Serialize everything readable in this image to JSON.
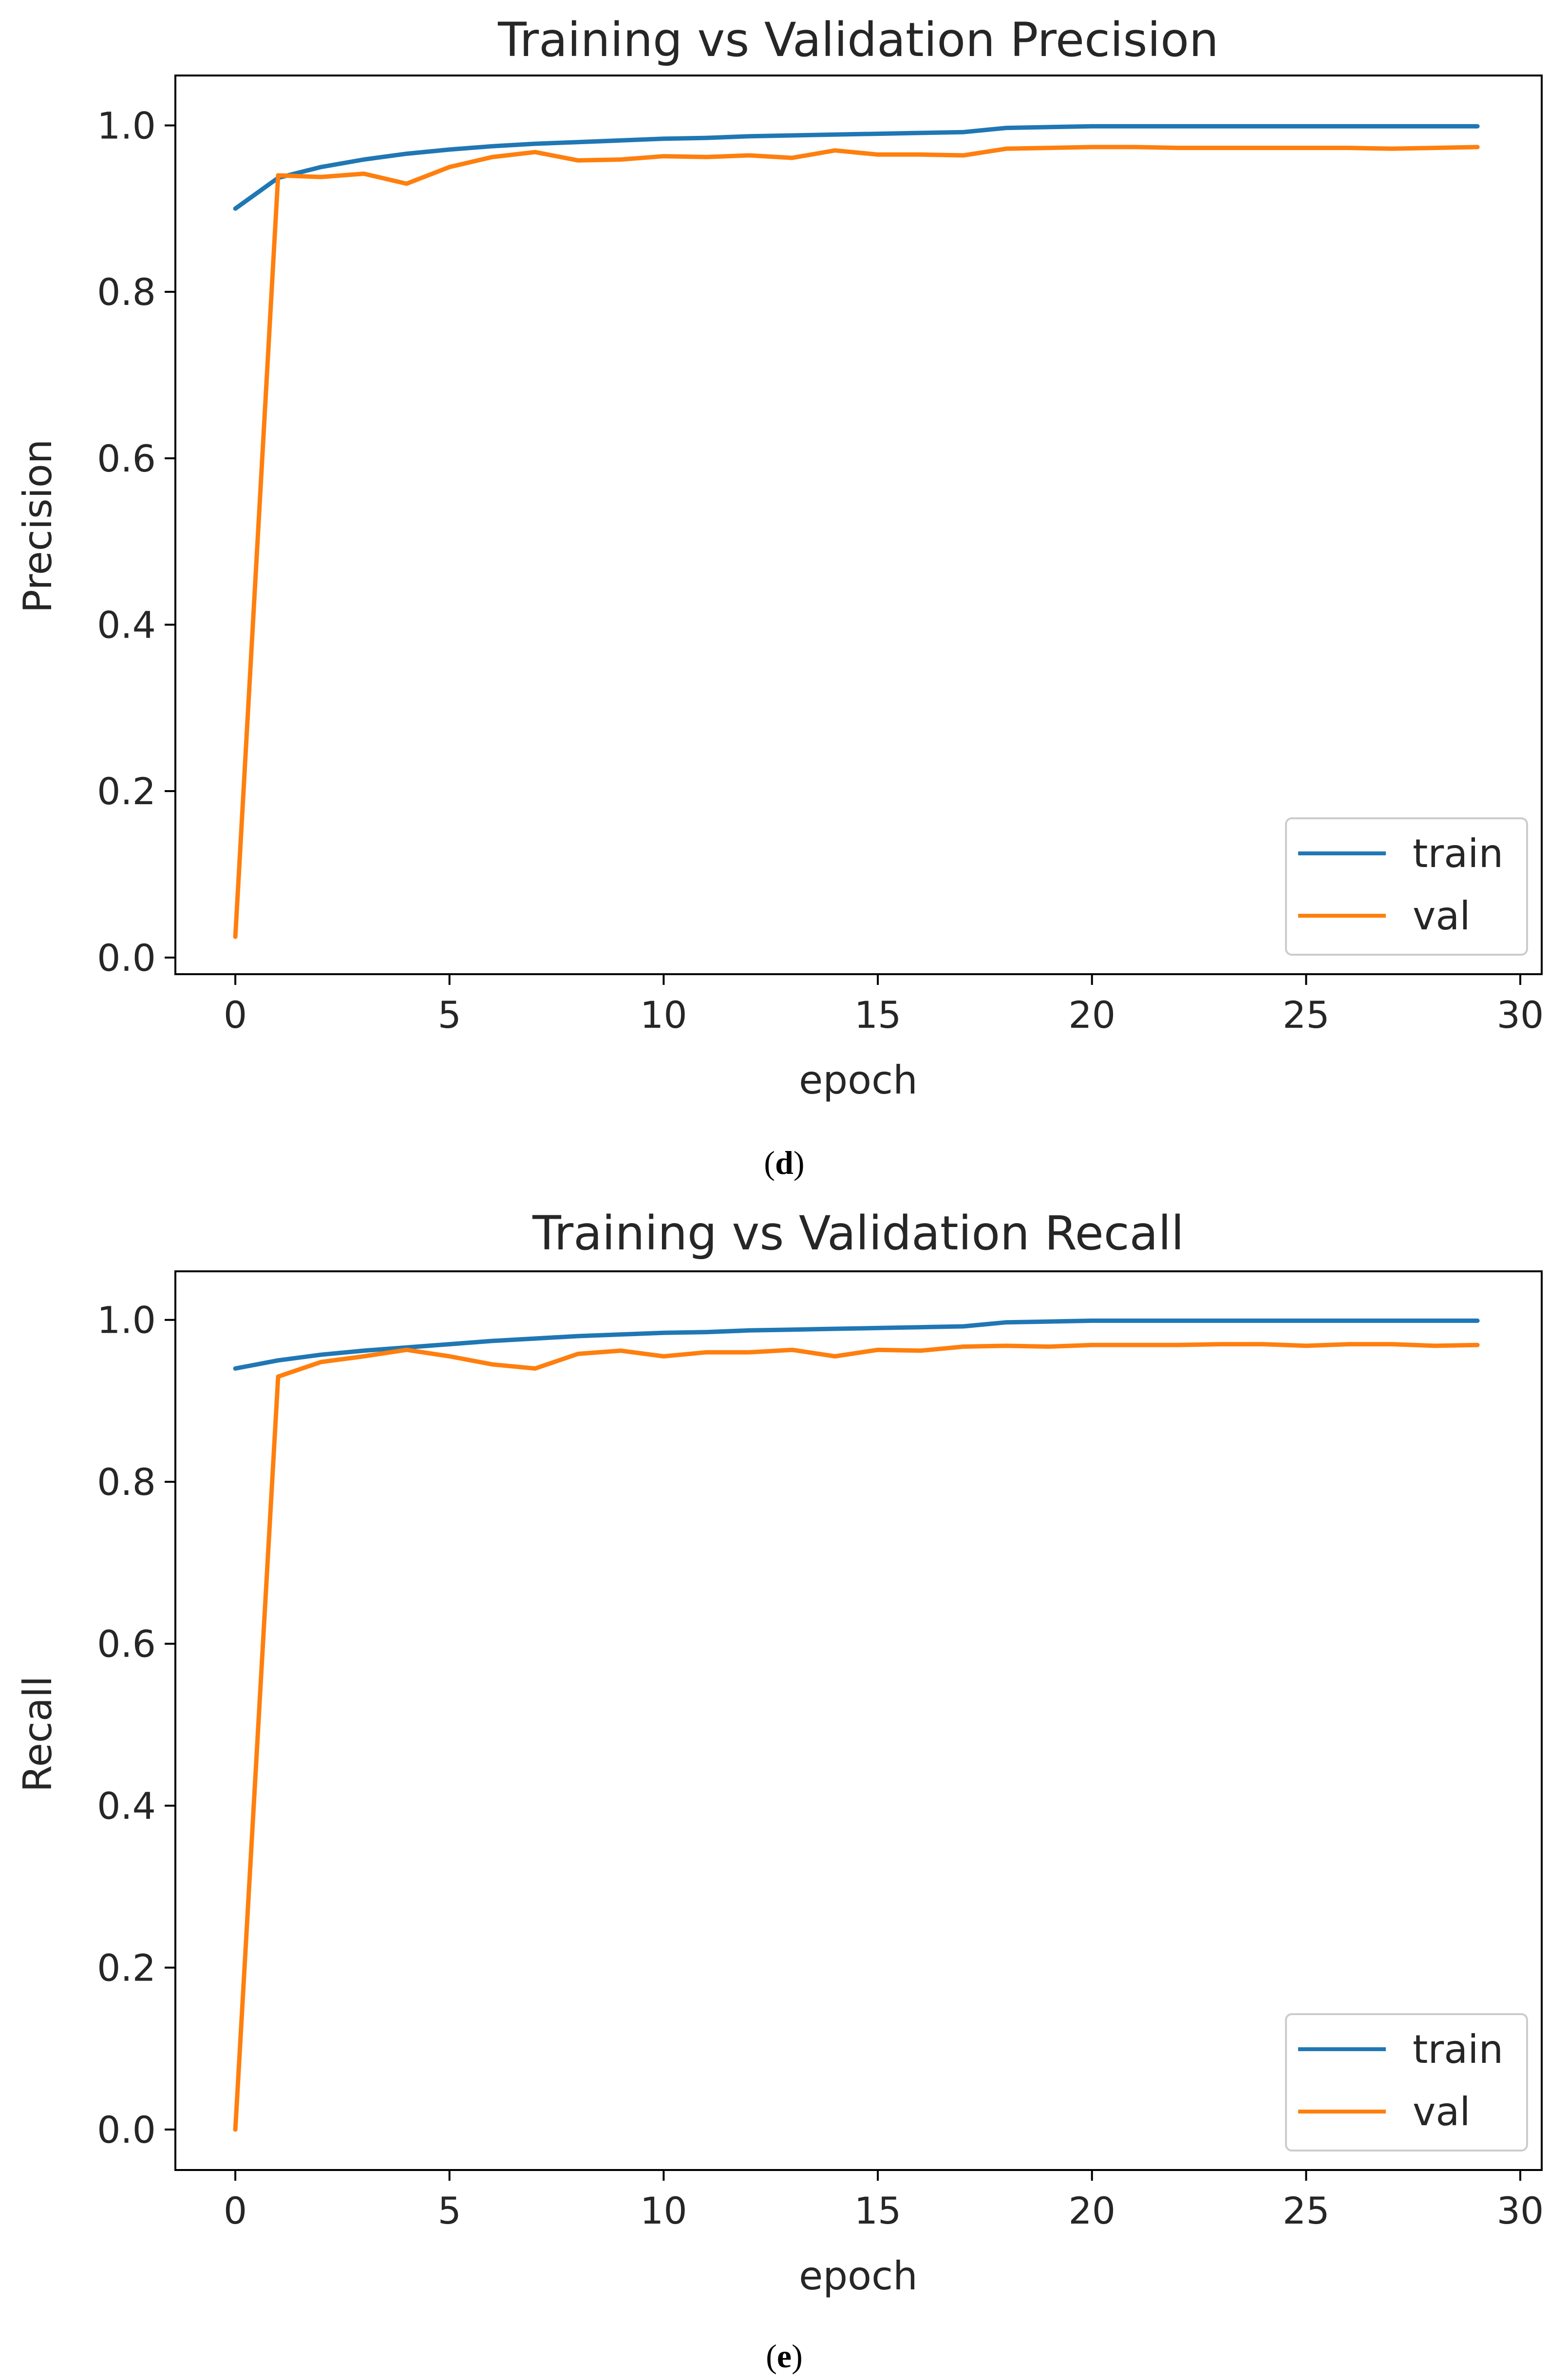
{
  "charts": [
    {
      "title": "Training vs Validation Precision",
      "xlabel": "epoch",
      "ylabel": "Precision",
      "caption": {
        "open": "(",
        "letter": "d",
        "close": ")"
      },
      "legend": [
        "train",
        "val"
      ]
    },
    {
      "title": "Training vs Validation Recall",
      "xlabel": "epoch",
      "ylabel": "Recall",
      "caption": {
        "open": "(",
        "letter": "e",
        "close": ")"
      },
      "legend": [
        "train",
        "val"
      ]
    }
  ],
  "colors": {
    "train": "#1f77b4",
    "val": "#ff7f0e"
  },
  "chart_data": [
    {
      "type": "line",
      "title": "Training vs Validation Precision",
      "xlabel": "epoch",
      "ylabel": "Precision",
      "xlim": [
        -1.4,
        30.5
      ],
      "ylim": [
        -0.02,
        1.06
      ],
      "xticks": [
        0,
        5,
        10,
        15,
        20,
        25,
        30
      ],
      "xtick_labels": [
        "0",
        "5",
        "10",
        "15",
        "20",
        "25",
        "30"
      ],
      "yticks": [
        0.0,
        0.2,
        0.4,
        0.6,
        0.8,
        1.0
      ],
      "ytick_labels": [
        "0.0",
        "0.2",
        "0.4",
        "0.6",
        "0.8",
        "1.0"
      ],
      "legend_position": "lower-right",
      "x": [
        0,
        1,
        2,
        3,
        4,
        5,
        6,
        7,
        8,
        9,
        10,
        11,
        12,
        13,
        14,
        15,
        16,
        17,
        18,
        19,
        20,
        21,
        22,
        23,
        24,
        25,
        26,
        27,
        28,
        29
      ],
      "series": [
        {
          "name": "train",
          "values": [
            0.9,
            0.937,
            0.95,
            0.959,
            0.966,
            0.971,
            0.975,
            0.978,
            0.98,
            0.982,
            0.984,
            0.985,
            0.987,
            0.988,
            0.989,
            0.99,
            0.991,
            0.992,
            0.997,
            0.998,
            0.999,
            0.999,
            0.999,
            0.999,
            0.999,
            0.999,
            0.999,
            0.999,
            0.999,
            0.999
          ]
        },
        {
          "name": "val",
          "values": [
            0.025,
            0.94,
            0.938,
            0.942,
            0.93,
            0.95,
            0.962,
            0.968,
            0.958,
            0.959,
            0.963,
            0.962,
            0.964,
            0.961,
            0.97,
            0.965,
            0.965,
            0.964,
            0.972,
            0.973,
            0.974,
            0.974,
            0.973,
            0.973,
            0.973,
            0.973,
            0.973,
            0.972,
            0.973,
            0.974
          ]
        }
      ]
    },
    {
      "type": "line",
      "title": "Training vs Validation Recall",
      "xlabel": "epoch",
      "ylabel": "Recall",
      "xlim": [
        -1.4,
        30.5
      ],
      "ylim": [
        -0.05,
        1.06
      ],
      "xticks": [
        0,
        5,
        10,
        15,
        20,
        25,
        30
      ],
      "xtick_labels": [
        "0",
        "5",
        "10",
        "15",
        "20",
        "25",
        "30"
      ],
      "yticks": [
        0.0,
        0.2,
        0.4,
        0.6,
        0.8,
        1.0
      ],
      "ytick_labels": [
        "0.0",
        "0.2",
        "0.4",
        "0.6",
        "0.8",
        "1.0"
      ],
      "legend_position": "lower-right",
      "x": [
        0,
        1,
        2,
        3,
        4,
        5,
        6,
        7,
        8,
        9,
        10,
        11,
        12,
        13,
        14,
        15,
        16,
        17,
        18,
        19,
        20,
        21,
        22,
        23,
        24,
        25,
        26,
        27,
        28,
        29
      ],
      "series": [
        {
          "name": "train",
          "values": [
            0.94,
            0.95,
            0.957,
            0.962,
            0.966,
            0.97,
            0.974,
            0.977,
            0.98,
            0.982,
            0.984,
            0.985,
            0.987,
            0.988,
            0.989,
            0.99,
            0.991,
            0.992,
            0.997,
            0.998,
            0.999,
            0.999,
            0.999,
            0.999,
            0.999,
            0.999,
            0.999,
            0.999,
            0.999,
            0.999
          ]
        },
        {
          "name": "val",
          "values": [
            0.0,
            0.93,
            0.948,
            0.955,
            0.963,
            0.955,
            0.945,
            0.94,
            0.958,
            0.962,
            0.955,
            0.96,
            0.96,
            0.963,
            0.955,
            0.963,
            0.962,
            0.967,
            0.968,
            0.967,
            0.969,
            0.969,
            0.969,
            0.97,
            0.97,
            0.968,
            0.97,
            0.97,
            0.968,
            0.969
          ]
        }
      ]
    }
  ]
}
